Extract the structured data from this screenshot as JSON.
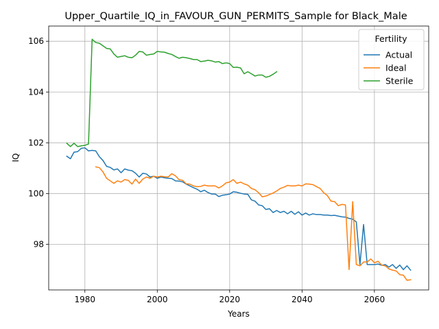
{
  "chart_data": {
    "type": "line",
    "title": "Upper_Quartile_IQ_in_FAVOUR_GUN_PERMITS_Sample for Black_Male",
    "xlabel": "Years",
    "ylabel": "IQ",
    "xlim": [
      1970,
      2075
    ],
    "ylim": [
      96.2,
      106.6
    ],
    "x_ticks": [
      1980,
      2000,
      2020,
      2040,
      2060
    ],
    "y_ticks": [
      98,
      100,
      102,
      104,
      106
    ],
    "grid": true,
    "legend": {
      "title": "Fertility",
      "placement": "top-right"
    },
    "series": [
      {
        "name": "Actual",
        "color": "#1f77b4",
        "points": [
          [
            1975,
            101.47
          ],
          [
            1976,
            101.37
          ],
          [
            1977,
            101.63
          ],
          [
            1978,
            101.65
          ],
          [
            1979,
            101.78
          ],
          [
            1980,
            101.8
          ],
          [
            1981,
            101.68
          ],
          [
            1982,
            101.7
          ],
          [
            1983,
            101.68
          ],
          [
            1984,
            101.45
          ],
          [
            1985,
            101.3
          ],
          [
            1986,
            101.07
          ],
          [
            1987,
            101.03
          ],
          [
            1988,
            100.93
          ],
          [
            1989,
            100.97
          ],
          [
            1990,
            100.82
          ],
          [
            1991,
            100.97
          ],
          [
            1992,
            100.92
          ],
          [
            1993,
            100.9
          ],
          [
            1994,
            100.8
          ],
          [
            1995,
            100.65
          ],
          [
            1996,
            100.8
          ],
          [
            1997,
            100.77
          ],
          [
            1998,
            100.65
          ],
          [
            1999,
            100.68
          ],
          [
            2000,
            100.6
          ],
          [
            2001,
            100.65
          ],
          [
            2002,
            100.62
          ],
          [
            2003,
            100.6
          ],
          [
            2004,
            100.59
          ],
          [
            2005,
            100.5
          ],
          [
            2006,
            100.49
          ],
          [
            2007,
            100.46
          ],
          [
            2008,
            100.37
          ],
          [
            2009,
            100.3
          ],
          [
            2010,
            100.23
          ],
          [
            2011,
            100.17
          ],
          [
            2012,
            100.07
          ],
          [
            2013,
            100.13
          ],
          [
            2014,
            100.04
          ],
          [
            2015,
            99.98
          ],
          [
            2016,
            99.98
          ],
          [
            2017,
            99.88
          ],
          [
            2018,
            99.93
          ],
          [
            2019,
            99.95
          ],
          [
            2020,
            99.98
          ],
          [
            2021,
            100.07
          ],
          [
            2022,
            100.05
          ],
          [
            2023,
            100.01
          ],
          [
            2024,
            99.98
          ],
          [
            2025,
            99.97
          ],
          [
            2026,
            99.75
          ],
          [
            2027,
            99.7
          ],
          [
            2028,
            99.55
          ],
          [
            2029,
            99.52
          ],
          [
            2030,
            99.37
          ],
          [
            2031,
            99.4
          ],
          [
            2032,
            99.25
          ],
          [
            2033,
            99.33
          ],
          [
            2034,
            99.25
          ],
          [
            2035,
            99.3
          ],
          [
            2036,
            99.2
          ],
          [
            2037,
            99.3
          ],
          [
            2038,
            99.18
          ],
          [
            2039,
            99.28
          ],
          [
            2040,
            99.15
          ],
          [
            2041,
            99.23
          ],
          [
            2042,
            99.15
          ],
          [
            2043,
            99.2
          ],
          [
            2044,
            99.17
          ],
          [
            2045,
            99.17
          ],
          [
            2046,
            99.15
          ],
          [
            2047,
            99.15
          ],
          [
            2048,
            99.13
          ],
          [
            2049,
            99.14
          ],
          [
            2050,
            99.11
          ],
          [
            2051,
            99.08
          ],
          [
            2052,
            99.07
          ],
          [
            2053,
            99.02
          ],
          [
            2054,
            98.99
          ],
          [
            2055,
            98.88
          ],
          [
            2056,
            97.2
          ],
          [
            2057,
            98.78
          ],
          [
            2058,
            97.2
          ],
          [
            2059,
            97.2
          ],
          [
            2060,
            97.2
          ],
          [
            2061,
            97.22
          ],
          [
            2062,
            97.17
          ],
          [
            2063,
            97.2
          ],
          [
            2064,
            97.1
          ],
          [
            2065,
            97.2
          ],
          [
            2066,
            97.05
          ],
          [
            2067,
            97.18
          ],
          [
            2068,
            97.0
          ],
          [
            2069,
            97.15
          ],
          [
            2070,
            96.98
          ]
        ]
      },
      {
        "name": "Ideal",
        "color": "#ff7f0e",
        "points": [
          [
            1983,
            101.05
          ],
          [
            1984,
            101.02
          ],
          [
            1985,
            100.85
          ],
          [
            1986,
            100.6
          ],
          [
            1987,
            100.5
          ],
          [
            1988,
            100.4
          ],
          [
            1989,
            100.5
          ],
          [
            1990,
            100.45
          ],
          [
            1991,
            100.55
          ],
          [
            1992,
            100.52
          ],
          [
            1993,
            100.37
          ],
          [
            1994,
            100.57
          ],
          [
            1995,
            100.4
          ],
          [
            1996,
            100.57
          ],
          [
            1997,
            100.65
          ],
          [
            1998,
            100.6
          ],
          [
            1999,
            100.68
          ],
          [
            2000,
            100.65
          ],
          [
            2001,
            100.68
          ],
          [
            2002,
            100.66
          ],
          [
            2003,
            100.65
          ],
          [
            2004,
            100.78
          ],
          [
            2005,
            100.7
          ],
          [
            2006,
            100.55
          ],
          [
            2007,
            100.52
          ],
          [
            2008,
            100.38
          ],
          [
            2009,
            100.37
          ],
          [
            2010,
            100.3
          ],
          [
            2011,
            100.27
          ],
          [
            2012,
            100.28
          ],
          [
            2013,
            100.33
          ],
          [
            2014,
            100.3
          ],
          [
            2015,
            100.3
          ],
          [
            2016,
            100.3
          ],
          [
            2017,
            100.22
          ],
          [
            2018,
            100.3
          ],
          [
            2019,
            100.42
          ],
          [
            2020,
            100.45
          ],
          [
            2021,
            100.55
          ],
          [
            2022,
            100.4
          ],
          [
            2023,
            100.45
          ],
          [
            2024,
            100.38
          ],
          [
            2025,
            100.33
          ],
          [
            2026,
            100.2
          ],
          [
            2027,
            100.15
          ],
          [
            2028,
            100.03
          ],
          [
            2029,
            99.87
          ],
          [
            2030,
            99.9
          ],
          [
            2031,
            99.96
          ],
          [
            2032,
            100.02
          ],
          [
            2033,
            100.1
          ],
          [
            2034,
            100.2
          ],
          [
            2035,
            100.25
          ],
          [
            2036,
            100.32
          ],
          [
            2037,
            100.3
          ],
          [
            2038,
            100.3
          ],
          [
            2039,
            100.33
          ],
          [
            2040,
            100.3
          ],
          [
            2041,
            100.38
          ],
          [
            2042,
            100.37
          ],
          [
            2043,
            100.35
          ],
          [
            2044,
            100.27
          ],
          [
            2045,
            100.2
          ],
          [
            2046,
            100.03
          ],
          [
            2047,
            99.92
          ],
          [
            2048,
            99.7
          ],
          [
            2049,
            99.68
          ],
          [
            2050,
            99.52
          ],
          [
            2051,
            99.57
          ],
          [
            2052,
            99.55
          ],
          [
            2053,
            97.0
          ],
          [
            2054,
            99.68
          ],
          [
            2055,
            97.2
          ],
          [
            2056,
            97.15
          ],
          [
            2057,
            97.3
          ],
          [
            2058,
            97.3
          ],
          [
            2059,
            97.42
          ],
          [
            2060,
            97.27
          ],
          [
            2061,
            97.33
          ],
          [
            2062,
            97.18
          ],
          [
            2063,
            97.15
          ],
          [
            2064,
            97.03
          ],
          [
            2065,
            96.98
          ],
          [
            2066,
            96.95
          ],
          [
            2067,
            96.8
          ],
          [
            2068,
            96.78
          ],
          [
            2069,
            96.58
          ],
          [
            2070,
            96.6
          ]
        ]
      },
      {
        "name": "Sterile",
        "color": "#2ca02c",
        "points": [
          [
            1975,
            101.98
          ],
          [
            1976,
            101.85
          ],
          [
            1977,
            101.98
          ],
          [
            1978,
            101.85
          ],
          [
            1979,
            101.88
          ],
          [
            1980,
            101.9
          ],
          [
            1981,
            101.95
          ],
          [
            1982,
            106.08
          ],
          [
            1983,
            105.95
          ],
          [
            1984,
            105.92
          ],
          [
            1985,
            105.82
          ],
          [
            1986,
            105.72
          ],
          [
            1987,
            105.7
          ],
          [
            1988,
            105.5
          ],
          [
            1989,
            105.37
          ],
          [
            1990,
            105.4
          ],
          [
            1991,
            105.43
          ],
          [
            1992,
            105.37
          ],
          [
            1993,
            105.35
          ],
          [
            1994,
            105.45
          ],
          [
            1995,
            105.6
          ],
          [
            1996,
            105.58
          ],
          [
            1997,
            105.45
          ],
          [
            1998,
            105.48
          ],
          [
            1999,
            105.5
          ],
          [
            2000,
            105.6
          ],
          [
            2001,
            105.58
          ],
          [
            2002,
            105.57
          ],
          [
            2003,
            105.52
          ],
          [
            2004,
            105.48
          ],
          [
            2005,
            105.4
          ],
          [
            2006,
            105.33
          ],
          [
            2007,
            105.37
          ],
          [
            2008,
            105.35
          ],
          [
            2009,
            105.32
          ],
          [
            2010,
            105.28
          ],
          [
            2011,
            105.28
          ],
          [
            2012,
            105.2
          ],
          [
            2013,
            105.22
          ],
          [
            2014,
            105.25
          ],
          [
            2015,
            105.23
          ],
          [
            2016,
            105.18
          ],
          [
            2017,
            105.2
          ],
          [
            2018,
            105.12
          ],
          [
            2019,
            105.15
          ],
          [
            2020,
            105.12
          ],
          [
            2021,
            104.97
          ],
          [
            2022,
            104.98
          ],
          [
            2023,
            104.95
          ],
          [
            2024,
            104.72
          ],
          [
            2025,
            104.8
          ],
          [
            2026,
            104.72
          ],
          [
            2027,
            104.63
          ],
          [
            2028,
            104.67
          ],
          [
            2029,
            104.67
          ],
          [
            2030,
            104.58
          ],
          [
            2031,
            104.62
          ],
          [
            2032,
            104.7
          ],
          [
            2033,
            104.8
          ]
        ]
      }
    ]
  }
}
